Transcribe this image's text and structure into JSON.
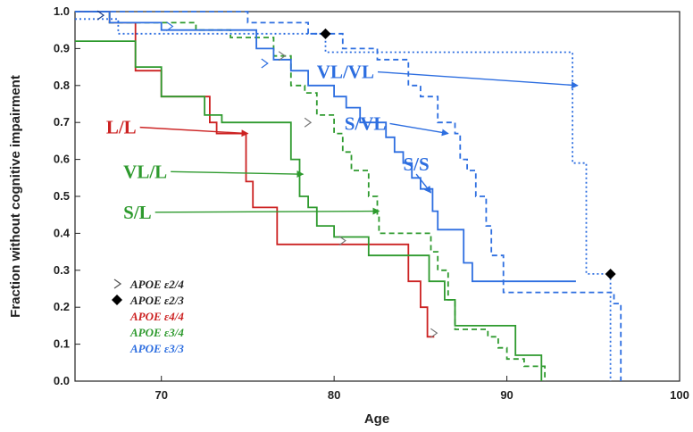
{
  "chart_data": {
    "type": "line",
    "xlabel": "Age",
    "ylabel": "Fraction without cognitive impairment",
    "xlim": [
      65,
      100
    ],
    "ylim": [
      0,
      1
    ],
    "x_ticks": [
      "70",
      "80",
      "90",
      "100"
    ],
    "y_ticks": [
      "0.0",
      "0.1",
      "0.2",
      "0.3",
      "0.4",
      "0.5",
      "0.6",
      "0.7",
      "0.8",
      "0.9",
      "1.0"
    ],
    "grid": false,
    "legend_position": "bottom-left",
    "series": [
      {
        "name": "L/L",
        "color": "#cc2222",
        "dash": "solid",
        "points": [
          [
            65,
            1.0
          ],
          [
            67,
            1.0
          ],
          [
            67,
            0.97
          ],
          [
            68.5,
            0.97
          ],
          [
            68.5,
            0.84
          ],
          [
            70,
            0.84
          ],
          [
            70,
            0.77
          ],
          [
            72.8,
            0.77
          ],
          [
            72.8,
            0.7
          ],
          [
            73.2,
            0.7
          ],
          [
            73.2,
            0.67
          ],
          [
            74.9,
            0.67
          ],
          [
            74.9,
            0.54
          ],
          [
            75.3,
            0.54
          ],
          [
            75.3,
            0.47
          ],
          [
            76.7,
            0.47
          ],
          [
            76.7,
            0.37
          ],
          [
            84.3,
            0.37
          ],
          [
            84.3,
            0.27
          ],
          [
            85.0,
            0.27
          ],
          [
            85.0,
            0.2
          ],
          [
            85.4,
            0.2
          ],
          [
            85.4,
            0.12
          ],
          [
            85.8,
            0.12
          ]
        ]
      },
      {
        "name": "VL/L",
        "color": "#2e9a2e",
        "dash": "solid",
        "points": [
          [
            65,
            0.92
          ],
          [
            68.5,
            0.92
          ],
          [
            68.5,
            0.85
          ],
          [
            70,
            0.85
          ],
          [
            70,
            0.77
          ],
          [
            72.5,
            0.77
          ],
          [
            72.5,
            0.72
          ],
          [
            73.5,
            0.72
          ],
          [
            73.5,
            0.7
          ],
          [
            77.5,
            0.7
          ],
          [
            77.5,
            0.6
          ],
          [
            78,
            0.6
          ],
          [
            78,
            0.5
          ],
          [
            78.5,
            0.5
          ],
          [
            78.5,
            0.47
          ],
          [
            79,
            0.47
          ],
          [
            79,
            0.42
          ],
          [
            80,
            0.42
          ],
          [
            80,
            0.39
          ],
          [
            82,
            0.39
          ],
          [
            82,
            0.34
          ],
          [
            85.5,
            0.34
          ],
          [
            85.5,
            0.27
          ],
          [
            86.4,
            0.27
          ],
          [
            86.4,
            0.22
          ],
          [
            87,
            0.22
          ],
          [
            87,
            0.15
          ],
          [
            90.5,
            0.15
          ],
          [
            90.5,
            0.07
          ],
          [
            92,
            0.07
          ],
          [
            92,
            0.0
          ]
        ]
      },
      {
        "name": "S/L",
        "color": "#2e9a2e",
        "dash": "dashed",
        "points": [
          [
            65,
            1.0
          ],
          [
            67,
            1.0
          ],
          [
            67,
            0.97
          ],
          [
            72,
            0.97
          ],
          [
            72,
            0.95
          ],
          [
            74,
            0.95
          ],
          [
            74,
            0.93
          ],
          [
            76.5,
            0.93
          ],
          [
            76.5,
            0.88
          ],
          [
            77.5,
            0.88
          ],
          [
            77.5,
            0.8
          ],
          [
            78.3,
            0.8
          ],
          [
            78.3,
            0.78
          ],
          [
            79,
            0.78
          ],
          [
            79,
            0.72
          ],
          [
            80,
            0.72
          ],
          [
            80,
            0.67
          ],
          [
            80.5,
            0.67
          ],
          [
            80.5,
            0.62
          ],
          [
            81,
            0.62
          ],
          [
            81,
            0.57
          ],
          [
            82,
            0.57
          ],
          [
            82,
            0.5
          ],
          [
            82.5,
            0.5
          ],
          [
            82.5,
            0.45
          ],
          [
            82.6,
            0.45
          ],
          [
            82.6,
            0.4
          ],
          [
            85.6,
            0.4
          ],
          [
            85.6,
            0.35
          ],
          [
            86,
            0.35
          ],
          [
            86,
            0.3
          ],
          [
            86.6,
            0.3
          ],
          [
            86.6,
            0.22
          ],
          [
            87,
            0.22
          ],
          [
            87,
            0.14
          ],
          [
            88.9,
            0.14
          ],
          [
            88.9,
            0.12
          ],
          [
            89.5,
            0.12
          ],
          [
            89.5,
            0.09
          ],
          [
            90,
            0.09
          ],
          [
            90,
            0.06
          ],
          [
            91,
            0.06
          ],
          [
            91,
            0.04
          ],
          [
            92.2,
            0.04
          ],
          [
            92.2,
            0.0
          ]
        ]
      },
      {
        "name": "S/S",
        "color": "#2d6ee0",
        "dash": "solid",
        "points": [
          [
            65,
            1.0
          ],
          [
            67,
            1.0
          ],
          [
            67,
            0.97
          ],
          [
            70,
            0.97
          ],
          [
            70,
            0.95
          ],
          [
            75.5,
            0.95
          ],
          [
            75.5,
            0.9
          ],
          [
            76.5,
            0.9
          ],
          [
            76.5,
            0.87
          ],
          [
            77.5,
            0.87
          ],
          [
            77.5,
            0.84
          ],
          [
            78.5,
            0.84
          ],
          [
            78.5,
            0.8
          ],
          [
            80,
            0.8
          ],
          [
            80,
            0.77
          ],
          [
            80.7,
            0.77
          ],
          [
            80.7,
            0.74
          ],
          [
            81.5,
            0.74
          ],
          [
            81.5,
            0.7
          ],
          [
            83,
            0.7
          ],
          [
            83,
            0.66
          ],
          [
            83.5,
            0.66
          ],
          [
            83.5,
            0.62
          ],
          [
            84,
            0.62
          ],
          [
            84,
            0.59
          ],
          [
            84.5,
            0.59
          ],
          [
            84.5,
            0.55
          ],
          [
            85,
            0.55
          ],
          [
            85,
            0.52
          ],
          [
            85.7,
            0.52
          ],
          [
            85.7,
            0.46
          ],
          [
            86,
            0.46
          ],
          [
            86,
            0.41
          ],
          [
            87.5,
            0.41
          ],
          [
            87.5,
            0.32
          ],
          [
            88,
            0.32
          ],
          [
            88,
            0.27
          ],
          [
            94,
            0.27
          ]
        ]
      },
      {
        "name": "S/VL",
        "color": "#2d6ee0",
        "dash": "dashed",
        "points": [
          [
            65,
            1.0
          ],
          [
            75,
            1.0
          ],
          [
            75,
            0.97
          ],
          [
            78.5,
            0.97
          ],
          [
            78.5,
            0.94
          ],
          [
            80.5,
            0.94
          ],
          [
            80.5,
            0.9
          ],
          [
            82.5,
            0.9
          ],
          [
            82.5,
            0.87
          ],
          [
            84.3,
            0.87
          ],
          [
            84.3,
            0.8
          ],
          [
            85,
            0.8
          ],
          [
            85,
            0.77
          ],
          [
            86,
            0.77
          ],
          [
            86,
            0.7
          ],
          [
            87,
            0.7
          ],
          [
            87,
            0.67
          ],
          [
            87.3,
            0.67
          ],
          [
            87.3,
            0.6
          ],
          [
            87.7,
            0.6
          ],
          [
            87.7,
            0.57
          ],
          [
            88.2,
            0.57
          ],
          [
            88.2,
            0.5
          ],
          [
            88.8,
            0.5
          ],
          [
            88.8,
            0.42
          ],
          [
            89.1,
            0.42
          ],
          [
            89.1,
            0.34
          ],
          [
            89.8,
            0.34
          ],
          [
            89.8,
            0.24
          ],
          [
            96.2,
            0.24
          ],
          [
            96.2,
            0.21
          ],
          [
            96.6,
            0.21
          ],
          [
            96.6,
            0.0
          ]
        ]
      },
      {
        "name": "VL/VL",
        "color": "#2d6ee0",
        "dash": "dotted",
        "points": [
          [
            65,
            0.98
          ],
          [
            67.5,
            0.98
          ],
          [
            67.5,
            0.94
          ],
          [
            79.5,
            0.94
          ],
          [
            79.5,
            0.89
          ],
          [
            93.8,
            0.89
          ],
          [
            93.8,
            0.59
          ],
          [
            94.6,
            0.59
          ],
          [
            94.6,
            0.29
          ],
          [
            96,
            0.29
          ],
          [
            96,
            0.0
          ]
        ]
      }
    ],
    "censor_marks": [
      {
        "x": 66.5,
        "y": 0.99,
        "color": "#1a3d8a"
      },
      {
        "x": 70.5,
        "y": 0.96,
        "color": "#2d6ee0"
      },
      {
        "x": 76.0,
        "y": 0.86,
        "color": "#2d6ee0"
      },
      {
        "x": 77.0,
        "y": 0.88,
        "color": "#777777"
      },
      {
        "x": 78.5,
        "y": 0.7,
        "color": "#777777"
      },
      {
        "x": 80.5,
        "y": 0.38,
        "color": "#777777"
      },
      {
        "x": 85.8,
        "y": 0.13,
        "color": "#777777"
      }
    ],
    "diamonds": [
      {
        "x": 79.5,
        "y": 0.94
      },
      {
        "x": 96.0,
        "y": 0.29
      }
    ],
    "curve_labels": [
      {
        "text": "L/L",
        "color": "#cc2222",
        "x": 66.8,
        "y": 0.67,
        "arrow_to": [
          75.0,
          0.67
        ]
      },
      {
        "text": "VL/L",
        "color": "#2e9a2e",
        "x": 67.8,
        "y": 0.55,
        "arrow_to": [
          78.2,
          0.56
        ]
      },
      {
        "text": "S/L",
        "color": "#2e9a2e",
        "x": 67.8,
        "y": 0.44,
        "arrow_to": [
          82.6,
          0.46
        ]
      },
      {
        "text": "S/S",
        "color": "#2d6ee0",
        "x": 84.0,
        "y": 0.57,
        "arrow_to": [
          85.6,
          0.51
        ]
      },
      {
        "text": "S/VL",
        "color": "#2d6ee0",
        "x": 80.6,
        "y": 0.68,
        "arrow_to": [
          86.6,
          0.67
        ]
      },
      {
        "text": "VL/VL",
        "color": "#2d6ee0",
        "x": 79.0,
        "y": 0.82,
        "arrow_to": [
          94.1,
          0.8
        ]
      }
    ],
    "legend": [
      {
        "marker": "chevron",
        "color": "#555555",
        "label": "APOE ε2/4",
        "text_color": "#222222"
      },
      {
        "marker": "diamond",
        "color": "#000000",
        "label": "APOE ε2/3",
        "text_color": "#222222"
      },
      {
        "marker": "none",
        "color": "#cc2222",
        "label": "APOE ε4/4",
        "text_color": "#cc2222"
      },
      {
        "marker": "none",
        "color": "#2e9a2e",
        "label": "APOE ε3/4",
        "text_color": "#2e9a2e"
      },
      {
        "marker": "none",
        "color": "#2d6ee0",
        "label": "APOE ε3/3",
        "text_color": "#2d6ee0"
      }
    ]
  }
}
